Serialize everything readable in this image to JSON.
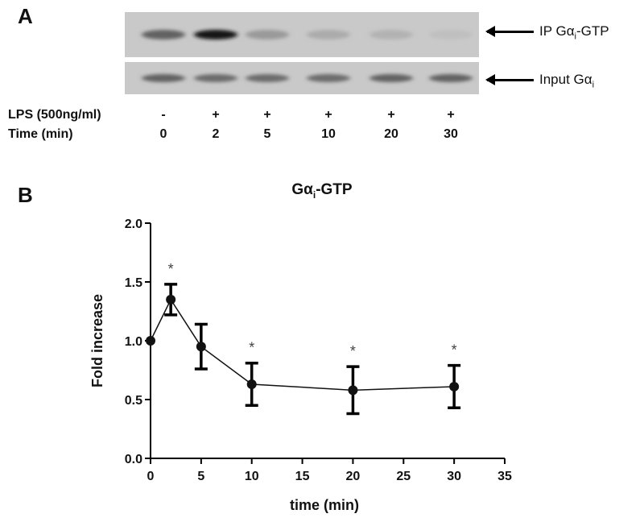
{
  "panel_a": {
    "letter": "A",
    "label_top": "IP Gα",
    "label_top_sub": "i",
    "label_top_suffix": "-GTP",
    "label_bottom": "Input Gα",
    "label_bottom_sub": "i",
    "row1_label": "LPS (500ng/ml)",
    "row2_label": "Time (min)",
    "lps": [
      "-",
      "+",
      "+",
      "+",
      "+",
      "+"
    ],
    "times": [
      "0",
      "2",
      "5",
      "10",
      "20",
      "30"
    ],
    "ip_band_intensity": [
      0.55,
      0.95,
      0.25,
      0.15,
      0.12,
      0.05
    ],
    "input_band_intensity": [
      0.55,
      0.5,
      0.5,
      0.5,
      0.55,
      0.55
    ]
  },
  "panel_b": {
    "letter": "B"
  },
  "chart_data": {
    "type": "line",
    "title": "Gα",
    "title_sub": "i",
    "title_suffix": "-GTP",
    "xlabel": "time (min)",
    "ylabel": "Fold increase",
    "xlim": [
      0,
      35
    ],
    "ylim": [
      0,
      2.0
    ],
    "xticks": [
      "0",
      "5",
      "10",
      "15",
      "20",
      "25",
      "30",
      "35"
    ],
    "yticks": [
      "0.0",
      "0.5",
      "1.0",
      "1.5",
      "2.0"
    ],
    "x": [
      0,
      2,
      5,
      10,
      20,
      30
    ],
    "y": [
      1.0,
      1.35,
      0.95,
      0.63,
      0.58,
      0.61
    ],
    "error": [
      0.0,
      0.13,
      0.19,
      0.18,
      0.2,
      0.18
    ],
    "significance": [
      "",
      "*",
      "",
      "*",
      "*",
      "*"
    ],
    "grid": false
  }
}
